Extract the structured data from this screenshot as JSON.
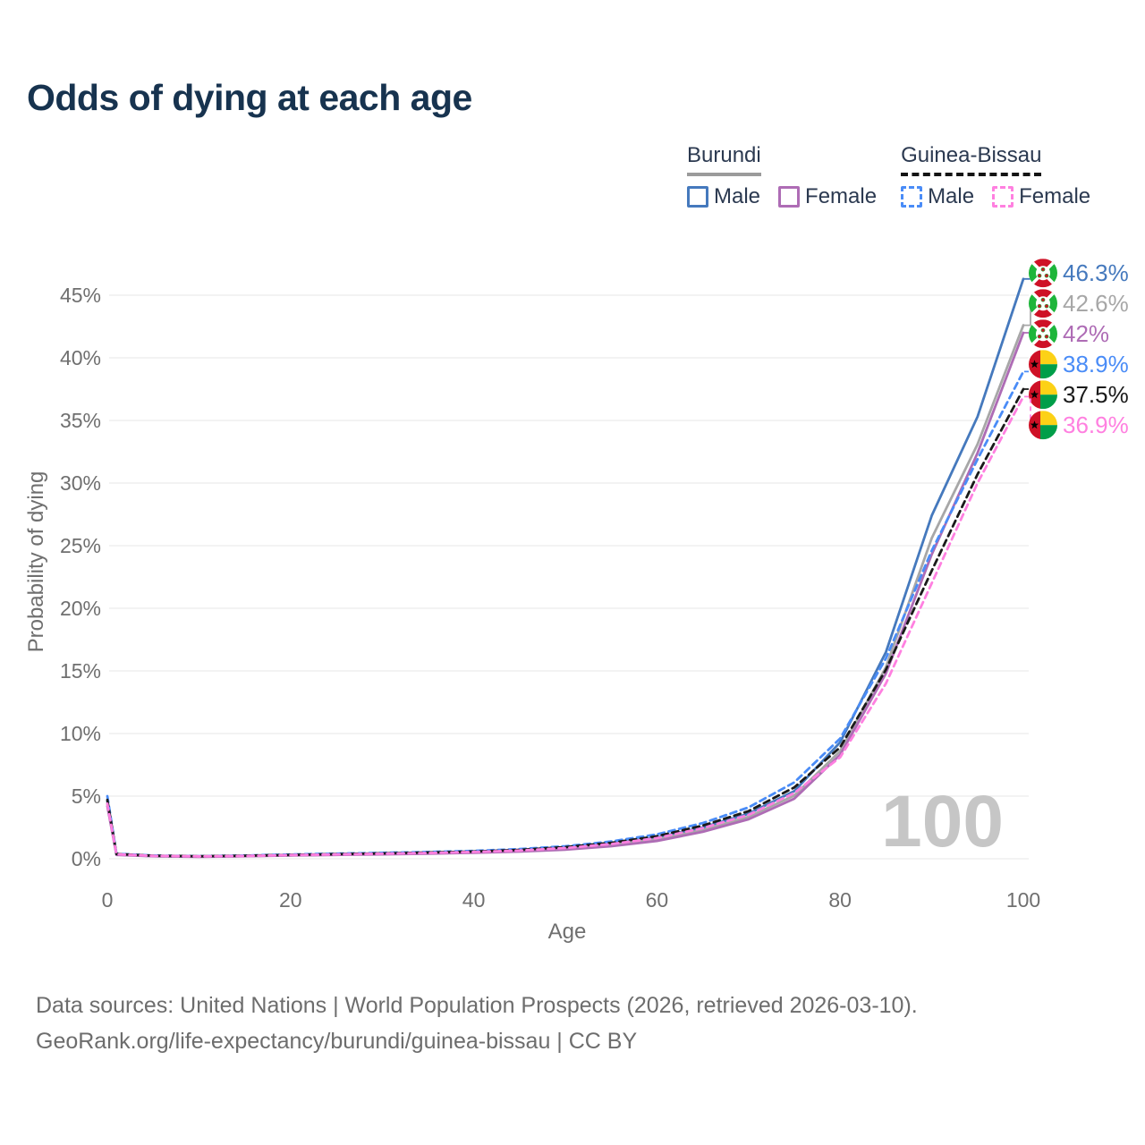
{
  "title": "Odds of dying at each age",
  "legend": {
    "groups": [
      {
        "label": "Burundi",
        "line_style": "solid",
        "underline_color": "#9b9b9b",
        "items": [
          {
            "label": "Male",
            "color": "#4579bd"
          },
          {
            "label": "Female",
            "color": "#ae6cb5"
          }
        ]
      },
      {
        "label": "Guinea-Bissau",
        "line_style": "dashed",
        "underline_color": "#141414",
        "items": [
          {
            "label": "Male",
            "color": "#4a8cf7"
          },
          {
            "label": "Female",
            "color": "#ff80e0"
          }
        ]
      }
    ]
  },
  "watermark": "100",
  "footer": {
    "line1": "Data sources: United Nations | World Population Prospects (2026, retrieved 2026-03-10).",
    "line2": "GeoRank.org/life-expectancy/burundi/guinea-bissau | CC BY"
  },
  "chart_data": {
    "type": "line",
    "title": "Odds of dying at each age",
    "xlabel": "Age",
    "ylabel": "Probability of dying",
    "xlim": [
      0,
      100
    ],
    "ylim": [
      0,
      47
    ],
    "x_ticks": [
      0,
      20,
      40,
      60,
      80,
      100
    ],
    "y_ticks": [
      0,
      5,
      10,
      15,
      20,
      25,
      30,
      35,
      40,
      45
    ],
    "y_tick_suffix": "%",
    "grid": true,
    "legend_position": "top-right",
    "x": [
      0,
      1,
      5,
      10,
      15,
      20,
      25,
      30,
      35,
      40,
      45,
      50,
      55,
      60,
      65,
      70,
      75,
      80,
      85,
      90,
      95,
      100
    ],
    "series": [
      {
        "name": "Burundi Male",
        "color": "#4579bd",
        "dashed": false,
        "flag": "burundi",
        "end_label": "46.3%",
        "values": [
          4.6,
          0.35,
          0.22,
          0.18,
          0.22,
          0.3,
          0.36,
          0.42,
          0.48,
          0.55,
          0.68,
          0.88,
          1.2,
          1.7,
          2.5,
          3.6,
          5.4,
          9.3,
          16.5,
          27.4,
          35.3,
          46.3
        ]
      },
      {
        "name": "Burundi",
        "color": "#a7a7a7",
        "dashed": false,
        "flag": "burundi",
        "end_label": "42.6%",
        "values": [
          4.4,
          0.33,
          0.21,
          0.17,
          0.21,
          0.28,
          0.33,
          0.38,
          0.44,
          0.51,
          0.62,
          0.8,
          1.1,
          1.55,
          2.3,
          3.35,
          5.05,
          8.6,
          15.3,
          25.6,
          33.1,
          42.6
        ]
      },
      {
        "name": "Burundi Female",
        "color": "#ae6cb5",
        "dashed": false,
        "flag": "burundi",
        "end_label": "42%",
        "values": [
          4.2,
          0.31,
          0.2,
          0.16,
          0.2,
          0.26,
          0.31,
          0.35,
          0.41,
          0.48,
          0.57,
          0.73,
          1.0,
          1.42,
          2.15,
          3.15,
          4.8,
          8.3,
          14.8,
          24.3,
          32.4,
          42.0
        ]
      },
      {
        "name": "Guinea-Bissau Male",
        "color": "#4a8cf7",
        "dashed": true,
        "flag": "guinea-bissau",
        "end_label": "38.9%",
        "values": [
          5.0,
          0.4,
          0.26,
          0.21,
          0.26,
          0.34,
          0.41,
          0.47,
          0.54,
          0.63,
          0.77,
          1.0,
          1.38,
          1.95,
          2.85,
          4.1,
          6.1,
          9.6,
          16.0,
          24.6,
          31.9,
          38.9
        ]
      },
      {
        "name": "Guinea-Bissau",
        "color": "#1a1a1a",
        "dashed": true,
        "flag": "guinea-bissau",
        "end_label": "37.5%",
        "values": [
          4.7,
          0.38,
          0.24,
          0.2,
          0.24,
          0.31,
          0.37,
          0.43,
          0.5,
          0.58,
          0.71,
          0.93,
          1.27,
          1.8,
          2.65,
          3.8,
          5.7,
          8.9,
          15.1,
          23.0,
          30.7,
          37.5
        ]
      },
      {
        "name": "Guinea-Bissau Female",
        "color": "#ff80e0",
        "dashed": true,
        "flag": "guinea-bissau",
        "end_label": "36.9%",
        "values": [
          4.4,
          0.36,
          0.23,
          0.19,
          0.22,
          0.29,
          0.34,
          0.4,
          0.46,
          0.54,
          0.66,
          0.86,
          1.17,
          1.65,
          2.45,
          3.5,
          5.25,
          8.1,
          14.0,
          22.0,
          30.0,
          36.9
        ]
      }
    ],
    "flag_colors": {
      "burundi": {
        "red": "#ce1126",
        "green": "#1eb53a",
        "white": "#ffffff"
      },
      "guinea_bissau": {
        "red": "#ce1126",
        "yellow": "#fcd116",
        "green": "#009e49",
        "black": "#000000"
      }
    }
  }
}
